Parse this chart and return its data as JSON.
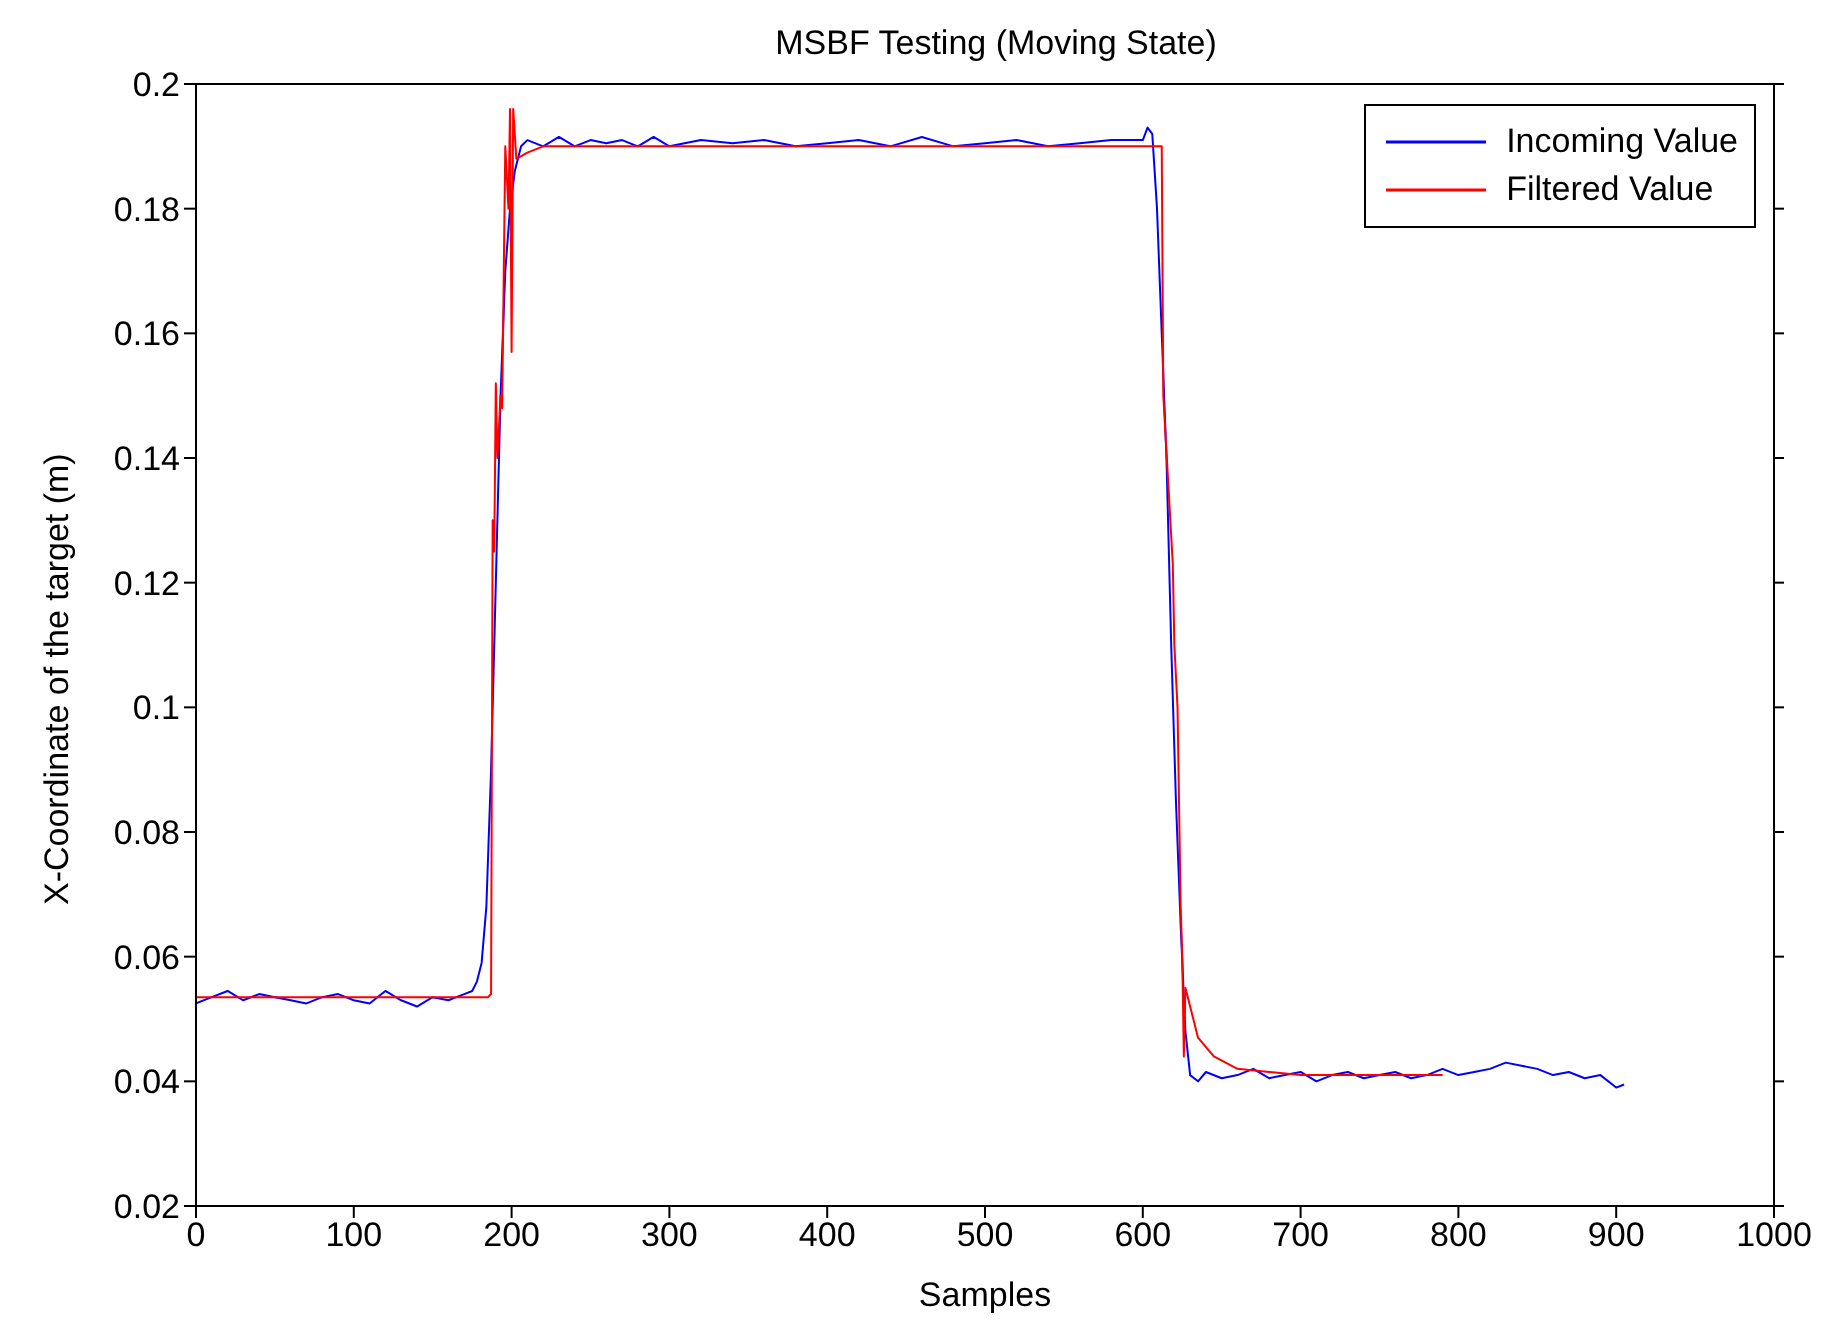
{
  "chart_data": {
    "type": "line",
    "title": "MSBF Testing (Moving State)",
    "xlabel": "Samples",
    "ylabel": "X-Coordinate of the target (m)",
    "xlim": [
      0,
      1000
    ],
    "xticks": [
      0,
      100,
      200,
      300,
      400,
      500,
      600,
      700,
      800,
      900,
      1000
    ],
    "ylim": [
      0.02,
      0.2
    ],
    "yticks": [
      0.02,
      0.04,
      0.06,
      0.08,
      0.1,
      0.12,
      0.14,
      0.16,
      0.18,
      0.2
    ],
    "legend": "top right",
    "marker": "none",
    "line_style": "solid",
    "series": [
      {
        "name": "Incoming Value",
        "color": "#0000ff",
        "x": [
          0,
          10,
          20,
          30,
          40,
          50,
          60,
          70,
          80,
          90,
          100,
          110,
          120,
          130,
          140,
          150,
          160,
          165,
          170,
          175,
          178,
          181,
          184,
          187,
          190,
          193,
          196,
          199,
          202,
          206,
          210,
          220,
          230,
          240,
          250,
          260,
          270,
          280,
          290,
          300,
          320,
          340,
          360,
          380,
          400,
          420,
          440,
          460,
          480,
          500,
          520,
          540,
          560,
          580,
          600,
          603,
          606,
          609,
          612,
          615,
          618,
          621,
          624,
          627,
          630,
          635,
          640,
          650,
          660,
          670,
          680,
          690,
          700,
          710,
          720,
          730,
          740,
          750,
          760,
          770,
          780,
          790,
          800,
          810,
          820,
          830,
          840,
          850,
          860,
          870,
          880,
          890,
          900,
          905
        ],
        "values": [
          0.0525,
          0.0535,
          0.0545,
          0.053,
          0.054,
          0.0535,
          0.053,
          0.0525,
          0.0535,
          0.054,
          0.053,
          0.0525,
          0.0545,
          0.053,
          0.052,
          0.0535,
          0.053,
          0.0535,
          0.054,
          0.0545,
          0.056,
          0.059,
          0.068,
          0.09,
          0.12,
          0.15,
          0.17,
          0.18,
          0.186,
          0.19,
          0.191,
          0.19,
          0.1915,
          0.19,
          0.191,
          0.1905,
          0.191,
          0.19,
          0.1915,
          0.19,
          0.191,
          0.1905,
          0.191,
          0.19,
          0.1905,
          0.191,
          0.19,
          0.1915,
          0.19,
          0.1905,
          0.191,
          0.19,
          0.1905,
          0.191,
          0.191,
          0.193,
          0.192,
          0.18,
          0.16,
          0.14,
          0.11,
          0.085,
          0.065,
          0.048,
          0.041,
          0.04,
          0.0415,
          0.0405,
          0.041,
          0.042,
          0.0405,
          0.041,
          0.0415,
          0.04,
          0.041,
          0.0415,
          0.0405,
          0.041,
          0.0415,
          0.0405,
          0.041,
          0.042,
          0.041,
          0.0415,
          0.042,
          0.043,
          0.0425,
          0.042,
          0.041,
          0.0415,
          0.0405,
          0.041,
          0.039,
          0.0395
        ]
      },
      {
        "name": "Filtered Value",
        "color": "#ff0000",
        "x": [
          0,
          50,
          100,
          150,
          185,
          187,
          188,
          189,
          190,
          191,
          193,
          194,
          196,
          198,
          199,
          200,
          201,
          203,
          210,
          220,
          300,
          400,
          500,
          600,
          612,
          613,
          619,
          620,
          622,
          624,
          625,
          626,
          627,
          630,
          635,
          645,
          660,
          680,
          700,
          750,
          790
        ],
        "values": [
          0.0535,
          0.0535,
          0.0535,
          0.0535,
          0.0535,
          0.054,
          0.13,
          0.125,
          0.152,
          0.14,
          0.15,
          0.148,
          0.19,
          0.18,
          0.196,
          0.157,
          0.196,
          0.188,
          0.189,
          0.19,
          0.19,
          0.19,
          0.19,
          0.19,
          0.19,
          0.15,
          0.123,
          0.11,
          0.1,
          0.068,
          0.06,
          0.044,
          0.055,
          0.052,
          0.047,
          0.044,
          0.042,
          0.0415,
          0.041,
          0.041,
          0.041
        ]
      }
    ]
  }
}
